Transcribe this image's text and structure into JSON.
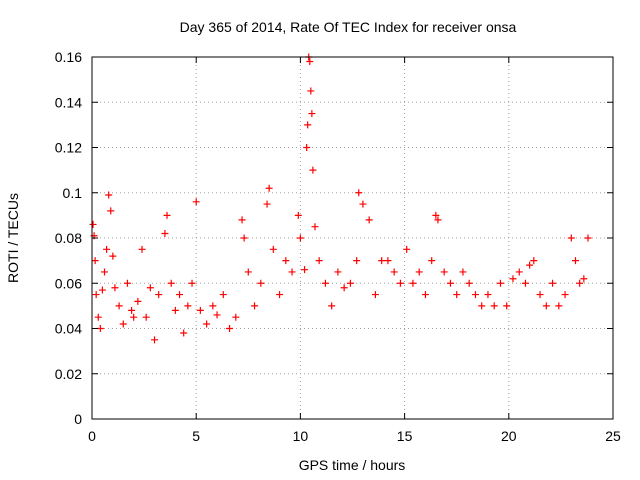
{
  "chart_data": {
    "type": "scatter",
    "title": "Day 365 of 2014, Rate Of TEC Index for receiver onsa",
    "xlabel": "GPS time / hours",
    "ylabel": "ROTI / TECUs",
    "xlim": [
      0,
      25
    ],
    "ylim": [
      0,
      0.16
    ],
    "xticks": [
      0,
      5,
      10,
      15,
      20,
      25
    ],
    "yticks": [
      0,
      0.02,
      0.04,
      0.06,
      0.08,
      0.1,
      0.12,
      0.14,
      0.16
    ],
    "xtick_labels": [
      "0",
      "5",
      "10",
      "15",
      "20",
      "25"
    ],
    "ytick_labels": [
      "0",
      "0.02",
      "0.04",
      "0.06",
      "0.08",
      "0.1",
      "0.12",
      "0.14",
      "0.16"
    ],
    "grid": true,
    "marker": "+",
    "color": "#ff0000",
    "series": [
      {
        "name": "ROTI",
        "x": [
          0.05,
          0.1,
          0.15,
          0.2,
          0.3,
          0.4,
          0.5,
          0.6,
          0.7,
          0.8,
          0.9,
          1.0,
          1.1,
          1.3,
          1.5,
          1.7,
          1.9,
          2.0,
          2.2,
          2.4,
          2.6,
          2.8,
          3.0,
          3.2,
          3.5,
          3.6,
          3.8,
          4.0,
          4.2,
          4.4,
          4.6,
          4.8,
          5.0,
          5.2,
          5.5,
          5.8,
          6.0,
          6.3,
          6.6,
          6.9,
          7.2,
          7.3,
          7.5,
          7.8,
          8.1,
          8.4,
          8.5,
          8.7,
          9.0,
          9.3,
          9.6,
          9.9,
          10.0,
          10.2,
          10.3,
          10.35,
          10.4,
          10.45,
          10.5,
          10.55,
          10.6,
          10.7,
          10.9,
          11.2,
          11.5,
          11.8,
          12.1,
          12.4,
          12.7,
          12.8,
          13.0,
          13.3,
          13.6,
          13.9,
          14.2,
          14.5,
          14.8,
          15.1,
          15.4,
          15.7,
          16.0,
          16.3,
          16.5,
          16.6,
          16.9,
          17.2,
          17.5,
          17.8,
          18.1,
          18.4,
          18.7,
          19.0,
          19.3,
          19.6,
          19.9,
          20.2,
          20.5,
          20.8,
          21.0,
          21.2,
          21.5,
          21.8,
          22.1,
          22.4,
          22.7,
          23.0,
          23.2,
          23.4,
          23.6,
          23.8
        ],
        "y": [
          0.086,
          0.081,
          0.07,
          0.055,
          0.045,
          0.04,
          0.057,
          0.065,
          0.075,
          0.099,
          0.092,
          0.072,
          0.058,
          0.05,
          0.042,
          0.06,
          0.048,
          0.045,
          0.052,
          0.075,
          0.045,
          0.058,
          0.035,
          0.055,
          0.082,
          0.09,
          0.06,
          0.048,
          0.055,
          0.038,
          0.05,
          0.06,
          0.096,
          0.048,
          0.042,
          0.05,
          0.046,
          0.055,
          0.04,
          0.045,
          0.088,
          0.08,
          0.065,
          0.05,
          0.06,
          0.095,
          0.102,
          0.075,
          0.055,
          0.07,
          0.065,
          0.09,
          0.08,
          0.066,
          0.12,
          0.13,
          0.16,
          0.158,
          0.145,
          0.135,
          0.11,
          0.085,
          0.07,
          0.06,
          0.05,
          0.065,
          0.058,
          0.06,
          0.07,
          0.1,
          0.095,
          0.088,
          0.055,
          0.07,
          0.07,
          0.065,
          0.06,
          0.075,
          0.06,
          0.065,
          0.055,
          0.07,
          0.09,
          0.088,
          0.065,
          0.06,
          0.055,
          0.065,
          0.06,
          0.055,
          0.05,
          0.055,
          0.05,
          0.06,
          0.05,
          0.062,
          0.065,
          0.06,
          0.068,
          0.07,
          0.055,
          0.05,
          0.06,
          0.05,
          0.055,
          0.08,
          0.07,
          0.06,
          0.062,
          0.08
        ]
      }
    ]
  }
}
